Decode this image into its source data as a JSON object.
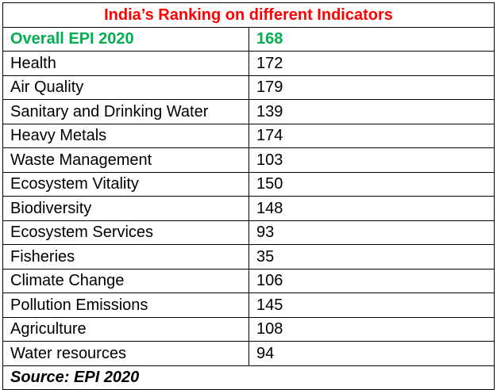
{
  "title": "India’s Ranking on different Indicators",
  "highlight": {
    "indicator": "Overall EPI 2020",
    "rank": "168"
  },
  "rows": [
    {
      "indicator": "Health",
      "rank": "172"
    },
    {
      "indicator": "Air Quality",
      "rank": "179"
    },
    {
      "indicator": "Sanitary and Drinking Water",
      "rank": "139"
    },
    {
      "indicator": "Heavy Metals",
      "rank": "174"
    },
    {
      "indicator": "Waste Management",
      "rank": "103"
    },
    {
      "indicator": "Ecosystem Vitality",
      "rank": "150"
    },
    {
      "indicator": "Biodiversity",
      "rank": "148"
    },
    {
      "indicator": "Ecosystem Services",
      "rank": "93"
    },
    {
      "indicator": "Fisheries",
      "rank": "35"
    },
    {
      "indicator": "Climate Change",
      "rank": "106"
    },
    {
      "indicator": "Pollution Emissions",
      "rank": "145"
    },
    {
      "indicator": "Agriculture",
      "rank": "108"
    },
    {
      "indicator": "Water resources",
      "rank": "94"
    }
  ],
  "source": "Source: EPI 2020",
  "colors": {
    "title": "#ff0000",
    "highlight": "#00b050",
    "text": "#000000",
    "border": "#000000"
  }
}
